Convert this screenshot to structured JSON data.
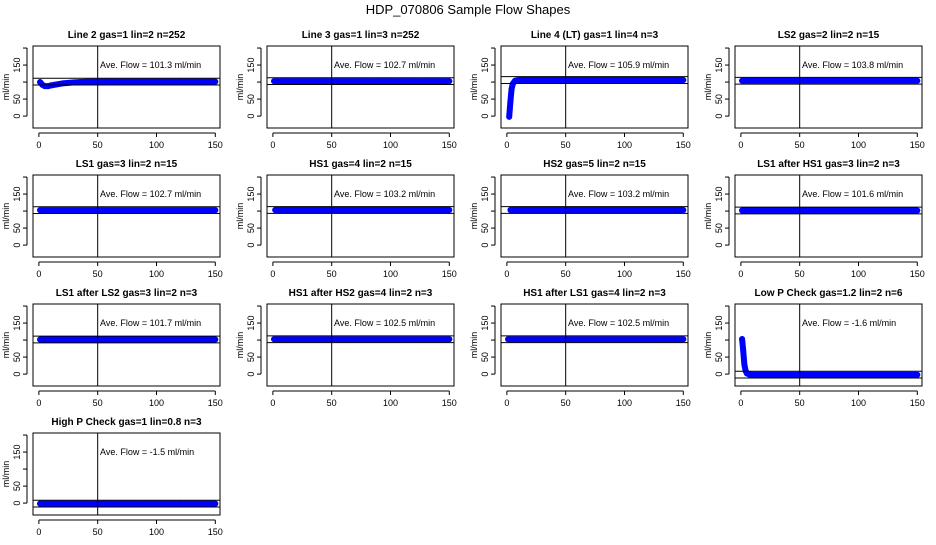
{
  "title": "HDP_070806  Sample Flow Shapes",
  "chart_data": {
    "type": "scatter",
    "ylabel": "ml/min",
    "xlim": [
      -5,
      154
    ],
    "ylim": [
      -35,
      206
    ],
    "xticks": [
      0,
      50,
      100,
      150
    ],
    "yticks": [
      0,
      50,
      100,
      150
    ],
    "ytick_labels": [
      "0",
      "50",
      "",
      "150"
    ],
    "reference_vline_x": 50,
    "band_halfwidth": 10,
    "marker_color": "#0000ff",
    "grid": false,
    "panels": [
      {
        "title": "Line 2 gas=1 lin=2 n=252",
        "ave_label": "Ave. Flow =  101.3  ml/min",
        "ave": 101.3,
        "points": [
          [
            1,
            100
          ],
          [
            3,
            92
          ],
          [
            5,
            88
          ],
          [
            8,
            88
          ],
          [
            10,
            90
          ],
          [
            15,
            93
          ],
          [
            20,
            96
          ],
          [
            30,
            99
          ],
          [
            40,
            101
          ],
          [
            50,
            101.5
          ],
          [
            60,
            101.5
          ],
          [
            70,
            101.5
          ],
          [
            80,
            101.5
          ],
          [
            90,
            101.5
          ],
          [
            100,
            101.5
          ],
          [
            110,
            101.5
          ],
          [
            120,
            101.5
          ],
          [
            130,
            101.5
          ],
          [
            140,
            101.5
          ],
          [
            150,
            101.5
          ]
        ]
      },
      {
        "title": "Line 3 gas=1 lin=3 n=252",
        "ave_label": "Ave. Flow =  102.7  ml/min",
        "ave": 102.7,
        "points": [
          [
            1,
            102.7
          ],
          [
            10,
            102.7
          ],
          [
            20,
            102.7
          ],
          [
            30,
            102.7
          ],
          [
            40,
            102.7
          ],
          [
            50,
            102.7
          ],
          [
            60,
            102.7
          ],
          [
            70,
            102.7
          ],
          [
            80,
            102.7
          ],
          [
            90,
            102.7
          ],
          [
            100,
            102.7
          ],
          [
            110,
            102.7
          ],
          [
            120,
            102.7
          ],
          [
            130,
            102.7
          ],
          [
            140,
            102.7
          ],
          [
            150,
            102.7
          ]
        ]
      },
      {
        "title": "Line 4 (LT) gas=1 lin=4 n=3",
        "ave_label": "Ave. Flow =  105.9  ml/min",
        "ave": 105.9,
        "points": [
          [
            2,
            -2
          ],
          [
            3,
            43
          ],
          [
            4,
            80
          ],
          [
            5,
            95
          ],
          [
            7,
            104
          ],
          [
            10,
            106
          ],
          [
            20,
            106
          ],
          [
            30,
            106
          ],
          [
            40,
            106
          ],
          [
            50,
            106
          ],
          [
            60,
            106
          ],
          [
            70,
            106
          ],
          [
            80,
            106
          ],
          [
            90,
            106
          ],
          [
            100,
            106
          ],
          [
            110,
            106
          ],
          [
            120,
            106
          ],
          [
            130,
            106
          ],
          [
            140,
            106
          ],
          [
            150,
            106
          ]
        ]
      },
      {
        "title": "LS2 gas=2 lin=2 n=15",
        "ave_label": "Ave. Flow =  103.8  ml/min",
        "ave": 103.8,
        "points": [
          [
            1,
            103.8
          ],
          [
            10,
            103.8
          ],
          [
            20,
            103.8
          ],
          [
            30,
            103.8
          ],
          [
            40,
            103.8
          ],
          [
            50,
            103.8
          ],
          [
            60,
            103.8
          ],
          [
            70,
            103.8
          ],
          [
            80,
            103.8
          ],
          [
            90,
            103.8
          ],
          [
            100,
            103.8
          ],
          [
            110,
            103.8
          ],
          [
            120,
            103.8
          ],
          [
            130,
            103.8
          ],
          [
            140,
            103.8
          ],
          [
            150,
            103.8
          ]
        ]
      },
      {
        "title": "LS1 gas=3 lin=2 n=15",
        "ave_label": "Ave. Flow =  102.7  ml/min",
        "ave": 102.7,
        "points": [
          [
            1,
            102.7
          ],
          [
            10,
            102.7
          ],
          [
            20,
            102.7
          ],
          [
            30,
            102.7
          ],
          [
            40,
            102.7
          ],
          [
            50,
            102.7
          ],
          [
            60,
            102.7
          ],
          [
            70,
            102.7
          ],
          [
            80,
            102.7
          ],
          [
            90,
            102.7
          ],
          [
            100,
            102.7
          ],
          [
            110,
            102.7
          ],
          [
            120,
            102.7
          ],
          [
            130,
            102.7
          ],
          [
            140,
            102.7
          ],
          [
            150,
            102.7
          ]
        ]
      },
      {
        "title": "HS1 gas=4 lin=2 n=15",
        "ave_label": "Ave. Flow =  103.2  ml/min",
        "ave": 103.2,
        "points": [
          [
            2,
            103.2
          ],
          [
            10,
            103.2
          ],
          [
            20,
            103.2
          ],
          [
            30,
            103.2
          ],
          [
            40,
            103.2
          ],
          [
            50,
            103.2
          ],
          [
            60,
            103.2
          ],
          [
            70,
            103.2
          ],
          [
            80,
            103.2
          ],
          [
            90,
            103.2
          ],
          [
            100,
            103.2
          ],
          [
            110,
            103.2
          ],
          [
            120,
            103.2
          ],
          [
            130,
            103.2
          ],
          [
            140,
            103.2
          ],
          [
            150,
            103.2
          ]
        ]
      },
      {
        "title": "HS2 gas=5 lin=2 n=15",
        "ave_label": "Ave. Flow =  103.2  ml/min",
        "ave": 103.2,
        "points": [
          [
            3,
            103.2
          ],
          [
            10,
            103.2
          ],
          [
            20,
            103.2
          ],
          [
            30,
            103.2
          ],
          [
            40,
            103.2
          ],
          [
            50,
            103.2
          ],
          [
            60,
            103.2
          ],
          [
            70,
            103.2
          ],
          [
            80,
            103.2
          ],
          [
            90,
            103.2
          ],
          [
            100,
            103.2
          ],
          [
            110,
            103.2
          ],
          [
            120,
            103.2
          ],
          [
            130,
            103.2
          ],
          [
            140,
            103.2
          ],
          [
            150,
            103.2
          ]
        ]
      },
      {
        "title": "LS1 after HS1 gas=3 lin=2 n=3",
        "ave_label": "Ave. Flow =  101.6  ml/min",
        "ave": 101.6,
        "points": [
          [
            1,
            101.6
          ],
          [
            10,
            101.6
          ],
          [
            20,
            101.6
          ],
          [
            30,
            101.6
          ],
          [
            40,
            101.6
          ],
          [
            50,
            101.6
          ],
          [
            60,
            101.6
          ],
          [
            70,
            101.6
          ],
          [
            80,
            101.6
          ],
          [
            90,
            101.6
          ],
          [
            100,
            101.6
          ],
          [
            110,
            101.6
          ],
          [
            120,
            101.6
          ],
          [
            130,
            101.6
          ],
          [
            140,
            101.6
          ],
          [
            150,
            101.6
          ]
        ]
      },
      {
        "title": "LS1 after LS2 gas=3 lin=2 n=3",
        "ave_label": "Ave. Flow =  101.7  ml/min",
        "ave": 101.7,
        "points": [
          [
            1,
            101.7
          ],
          [
            10,
            101.7
          ],
          [
            20,
            101.7
          ],
          [
            30,
            101.7
          ],
          [
            40,
            101.7
          ],
          [
            50,
            101.7
          ],
          [
            60,
            101.7
          ],
          [
            70,
            101.7
          ],
          [
            80,
            101.7
          ],
          [
            90,
            101.7
          ],
          [
            100,
            101.7
          ],
          [
            110,
            101.7
          ],
          [
            120,
            101.7
          ],
          [
            130,
            101.7
          ],
          [
            140,
            101.7
          ],
          [
            150,
            101.7
          ]
        ]
      },
      {
        "title": "HS1 after HS2 gas=4 lin=2 n=3",
        "ave_label": "Ave. Flow =  102.5  ml/min",
        "ave": 102.5,
        "points": [
          [
            1,
            102.5
          ],
          [
            10,
            102.5
          ],
          [
            20,
            102.5
          ],
          [
            30,
            102.5
          ],
          [
            40,
            102.5
          ],
          [
            50,
            102.5
          ],
          [
            60,
            102.5
          ],
          [
            70,
            102.5
          ],
          [
            80,
            102.5
          ],
          [
            90,
            102.5
          ],
          [
            100,
            102.5
          ],
          [
            110,
            102.5
          ],
          [
            120,
            102.5
          ],
          [
            130,
            102.5
          ],
          [
            140,
            102.5
          ],
          [
            150,
            102.5
          ]
        ]
      },
      {
        "title": "HS1 after LS1 gas=4 lin=2 n=3",
        "ave_label": "Ave. Flow =  102.5  ml/min",
        "ave": 102.5,
        "points": [
          [
            1,
            102.5
          ],
          [
            10,
            102.5
          ],
          [
            20,
            102.5
          ],
          [
            30,
            102.5
          ],
          [
            40,
            102.5
          ],
          [
            50,
            102.5
          ],
          [
            60,
            102.5
          ],
          [
            70,
            102.5
          ],
          [
            80,
            102.5
          ],
          [
            90,
            102.5
          ],
          [
            100,
            102.5
          ],
          [
            110,
            102.5
          ],
          [
            120,
            102.5
          ],
          [
            130,
            102.5
          ],
          [
            140,
            102.5
          ],
          [
            150,
            102.5
          ]
        ]
      },
      {
        "title": "Low P Check gas=1.2 lin=2 n=6",
        "ave_label": "Ave. Flow =  -1.6  ml/min",
        "ave": -1.6,
        "points": [
          [
            1,
            103
          ],
          [
            2,
            69
          ],
          [
            3,
            27
          ],
          [
            4,
            10
          ],
          [
            5,
            2
          ],
          [
            7,
            -1
          ],
          [
            10,
            -2
          ],
          [
            20,
            -2
          ],
          [
            30,
            -2
          ],
          [
            40,
            -2
          ],
          [
            50,
            -2
          ],
          [
            60,
            -2
          ],
          [
            70,
            -2
          ],
          [
            80,
            -2
          ],
          [
            90,
            -2
          ],
          [
            100,
            -2
          ],
          [
            110,
            -2
          ],
          [
            120,
            -2
          ],
          [
            130,
            -2
          ],
          [
            140,
            -2
          ],
          [
            150,
            -2
          ]
        ]
      },
      {
        "title": "High P Check gas=1 lin=0.8 n=3",
        "ave_label": "Ave. Flow =  -1.5  ml/min",
        "ave": -1.5,
        "points": [
          [
            1,
            -1.5
          ],
          [
            10,
            -1.5
          ],
          [
            20,
            -1.5
          ],
          [
            30,
            -1.5
          ],
          [
            40,
            -1.5
          ],
          [
            50,
            -1.5
          ],
          [
            60,
            -1.5
          ],
          [
            70,
            -1.5
          ],
          [
            80,
            -1.5
          ],
          [
            90,
            -1.5
          ],
          [
            100,
            -1.5
          ],
          [
            110,
            -1.5
          ],
          [
            120,
            -1.5
          ],
          [
            130,
            -1.5
          ],
          [
            140,
            -1.5
          ],
          [
            150,
            -1.5
          ]
        ]
      }
    ]
  }
}
